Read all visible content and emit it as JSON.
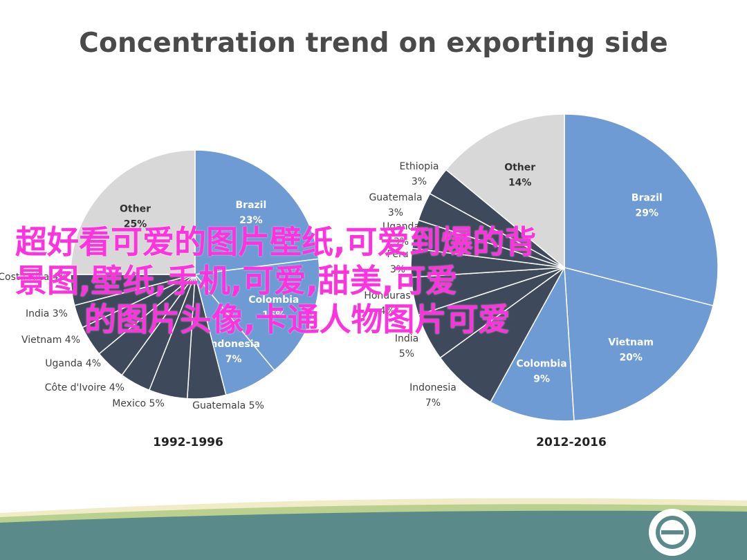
{
  "title": "Concentration trend on exporting side",
  "overlay": {
    "line1": "超好看可爱的图片壁纸,可爱到爆的背",
    "line2": "景图,壁纸,手机,可爱,甜美,可爱",
    "line3": "的图片头像,卡通人物图片可爱"
  },
  "colors": {
    "blue": "#6e9bd4",
    "navy": "#3e4a5c",
    "grey": "#d8d8d8",
    "footer_teal": "#5a8a8a",
    "footer_green": "#b9d08e",
    "footer_cream": "#f1ecc8"
  },
  "chart_data": [
    {
      "type": "pie",
      "title": "1992-1996",
      "slices": [
        {
          "label": "Brazil",
          "value": 23
        },
        {
          "label": "Colombia",
          "value": 16
        },
        {
          "label": "Indonesia",
          "value": 7
        },
        {
          "label": "Guatemala",
          "value": 5
        },
        {
          "label": "Mexico",
          "value": 5
        },
        {
          "label": "Côte d'Ivoire",
          "value": 4
        },
        {
          "label": "Uganda",
          "value": 4
        },
        {
          "label": "Vietnam",
          "value": 4
        },
        {
          "label": "India",
          "value": 3
        },
        {
          "label": "Costa Rica",
          "value": 4
        },
        {
          "label": "Other",
          "value": 25
        }
      ],
      "display": {
        "Brazil": "23%",
        "Colombia": "16%",
        "Indonesia": "7%",
        "Guatemala": "5%",
        "Mexico": "5%",
        "Côte d'Ivoire": "4%",
        "Uganda": "4%",
        "Vietnam": "4%",
        "India": "3%",
        "Costa Rica": "4%",
        "Other": "25%"
      }
    },
    {
      "type": "pie",
      "title": "2012-2016",
      "slices": [
        {
          "label": "Brazil",
          "value": 29
        },
        {
          "label": "Vietnam",
          "value": 20
        },
        {
          "label": "Colombia",
          "value": 9
        },
        {
          "label": "Indonesia",
          "value": 7
        },
        {
          "label": "India",
          "value": 5
        },
        {
          "label": "Honduras",
          "value": 4
        },
        {
          "label": "Peru",
          "value": 3
        },
        {
          "label": "Uganda",
          "value": 3
        },
        {
          "label": "Guatemala",
          "value": 3
        },
        {
          "label": "Ethiopia",
          "value": 3
        },
        {
          "label": "Other",
          "value": 14
        }
      ]
    }
  ]
}
